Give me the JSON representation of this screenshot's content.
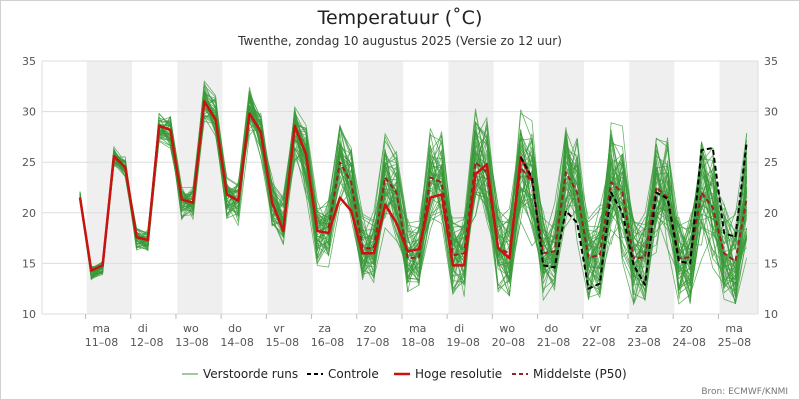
{
  "chart_data": {
    "type": "line",
    "title": "Temperatuur (˚C)",
    "subtitle": "Twenthe, zondag 10 augustus 2025 (Versie zo 12 uur)",
    "source": "Bron: ECMWF/KNMI",
    "ylim": [
      10,
      35
    ],
    "yticks": [
      "10",
      "15",
      "20",
      "25",
      "30",
      "35"
    ],
    "x_day_labels": [
      {
        "day": "ma",
        "date": "11–08"
      },
      {
        "day": "di",
        "date": "12–08"
      },
      {
        "day": "wo",
        "date": "13–08"
      },
      {
        "day": "do",
        "date": "14–08"
      },
      {
        "day": "vr",
        "date": "15–08"
      },
      {
        "day": "za",
        "date": "16–08"
      },
      {
        "day": "zo",
        "date": "17–08"
      },
      {
        "day": "ma",
        "date": "18–08"
      },
      {
        "day": "di",
        "date": "19–08"
      },
      {
        "day": "wo",
        "date": "20–08"
      },
      {
        "day": "do",
        "date": "21–08"
      },
      {
        "day": "vr",
        "date": "22–08"
      },
      {
        "day": "za",
        "date": "23–08"
      },
      {
        "day": "zo",
        "date": "24–08"
      },
      {
        "day": "ma",
        "date": "25–08"
      }
    ],
    "grid": true,
    "legend_position": "bottom",
    "legend": [
      "Verstoorde runs",
      "Controle",
      "Hoge resolutie",
      "Middelste (P50)"
    ],
    "colors": {
      "ensemble": "#3a9a3a",
      "control": "#000000",
      "hires": "#cc1111",
      "median": "#992222",
      "band": "#efefef"
    },
    "series": [
      {
        "name": "Hoge resolutie",
        "x": [
          0,
          0.25,
          0.5,
          0.75,
          1,
          1.25,
          1.5,
          1.75,
          2,
          2.25,
          2.5,
          2.75,
          3,
          3.25,
          3.5,
          3.75,
          4,
          4.25,
          4.5,
          4.75,
          5,
          5.25,
          5.5,
          5.75,
          6,
          6.25,
          6.5,
          6.75,
          7,
          7.25,
          7.5,
          7.75,
          8,
          8.25,
          8.5,
          8.75,
          9,
          9.25,
          9.5,
          9.75,
          10
        ],
        "values": [
          21.5,
          14.3,
          14.8,
          25.6,
          24.5,
          17.6,
          17.3,
          28.6,
          28.2,
          21.3,
          21.0,
          31.0,
          29.2,
          21.8,
          21.2,
          29.8,
          28.0,
          21.0,
          18.2,
          28.6,
          25.8,
          18.2,
          18.0,
          21.5,
          20.2,
          16.0,
          16.0,
          20.8,
          19.0,
          16.2,
          16.4,
          21.5,
          21.8,
          14.8,
          14.8,
          23.8,
          24.8,
          16.5,
          15.5,
          25.5,
          23.2
        ]
      },
      {
        "name": "Controle",
        "x": [
          9.75,
          10,
          10.25,
          10.5,
          10.75,
          11,
          11.25,
          11.5,
          11.75,
          12,
          12.25,
          12.5,
          12.75,
          13,
          13.25,
          13.5,
          13.75,
          14,
          14.25,
          14.5,
          14.75
        ],
        "values": [
          25.5,
          23.5,
          14.8,
          14.6,
          20.2,
          19.0,
          12.5,
          13.0,
          22.0,
          20.0,
          14.8,
          12.9,
          22.0,
          21.4,
          15.2,
          15.0,
          26.2,
          26.4,
          18.0,
          17.6,
          27.0
        ]
      },
      {
        "name": "Middelste (P50)",
        "x": [
          5.5,
          5.75,
          6,
          6.25,
          6.5,
          6.75,
          7,
          7.25,
          7.5,
          7.75,
          8,
          8.25,
          8.5,
          8.75,
          9,
          9.25,
          9.5,
          9.75,
          10,
          10.25,
          10.5,
          10.75,
          11,
          11.25,
          11.5,
          11.75,
          12,
          12.25,
          12.5,
          12.75,
          13,
          13.25,
          13.5,
          13.75,
          14,
          14.25,
          14.5,
          14.75
        ],
        "values": [
          18.5,
          25.0,
          23.0,
          16.5,
          16.5,
          23.5,
          22.0,
          15.5,
          15.6,
          23.5,
          23.0,
          15.8,
          16.0,
          25.0,
          24.0,
          16.5,
          16.0,
          24.5,
          23.0,
          16.0,
          16.2,
          24.0,
          22.0,
          15.6,
          15.8,
          23.0,
          22.0,
          15.5,
          15.6,
          22.5,
          21.5,
          15.5,
          15.6,
          22.0,
          20.5,
          16.0,
          15.2,
          21.5
        ]
      }
    ],
    "ensemble_mean": {
      "name": "Verstoorde runs",
      "x": [
        0,
        0.25,
        0.5,
        0.75,
        1,
        1.25,
        1.5,
        1.75,
        2,
        2.25,
        2.5,
        2.75,
        3,
        3.25,
        3.5,
        3.75,
        4,
        4.25,
        4.5,
        4.75,
        5,
        5.25,
        5.5,
        5.75,
        6,
        6.25,
        6.5,
        6.75,
        7,
        7.25,
        7.5,
        7.75,
        8,
        8.25,
        8.5,
        8.75,
        9,
        9.25,
        9.5,
        9.75,
        10,
        10.25,
        10.5,
        10.75,
        11,
        11.25,
        11.5,
        11.75,
        12,
        12.25,
        12.5,
        12.75,
        13,
        13.25,
        13.5,
        13.75,
        14,
        14.25,
        14.5,
        14.75
      ],
      "values": [
        21.5,
        14.0,
        14.5,
        25.5,
        24.5,
        17.5,
        17.2,
        28.5,
        28.0,
        21.0,
        21.0,
        31.0,
        29.5,
        21.5,
        21.0,
        30.0,
        28.0,
        21.0,
        19.5,
        28.0,
        25.5,
        18.0,
        18.0,
        25.0,
        23.0,
        16.5,
        16.5,
        23.5,
        22.0,
        15.5,
        15.6,
        23.5,
        23.0,
        15.8,
        16.0,
        25.0,
        24.0,
        16.5,
        16.0,
        24.5,
        23.0,
        16.0,
        16.2,
        24.0,
        22.0,
        15.6,
        15.8,
        23.0,
        22.0,
        15.5,
        15.6,
        22.5,
        21.5,
        15.5,
        15.6,
        22.0,
        20.5,
        16.0,
        15.2,
        21.5
      ],
      "spread": [
        0.5,
        0.6,
        0.6,
        0.8,
        0.8,
        0.9,
        0.9,
        1.2,
        1.2,
        1.3,
        1.3,
        1.6,
        1.6,
        1.7,
        1.7,
        2.0,
        2.0,
        2.0,
        2.2,
        2.6,
        2.8,
        2.6,
        2.8,
        3.2,
        3.4,
        2.8,
        3.0,
        3.6,
        3.6,
        3.0,
        3.0,
        4.0,
        4.0,
        3.2,
        3.4,
        4.4,
        4.4,
        3.4,
        3.6,
        4.6,
        4.8,
        3.6,
        3.6,
        4.8,
        4.8,
        3.6,
        3.8,
        5.0,
        5.0,
        3.8,
        3.8,
        5.0,
        5.0,
        3.8,
        3.8,
        5.0,
        5.0,
        3.8,
        3.8,
        5.2
      ],
      "members": 50
    }
  }
}
